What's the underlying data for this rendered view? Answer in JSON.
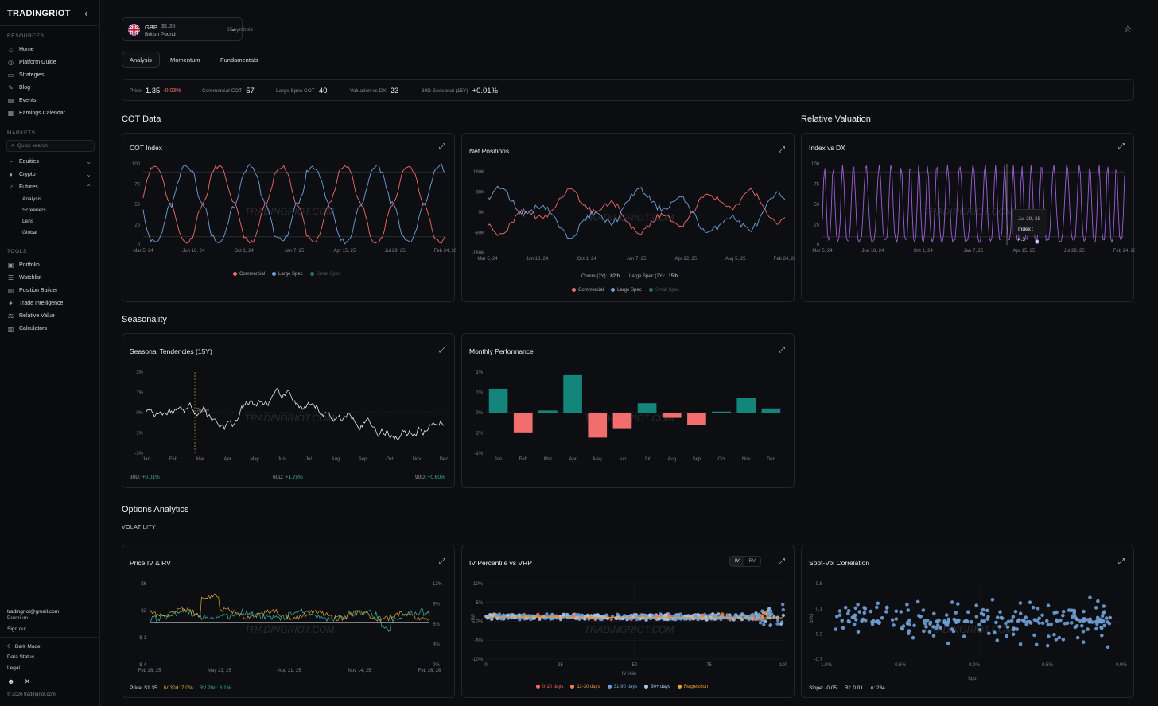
{
  "sidebar": {
    "brand": "TRADINGRIOT",
    "resources_label": "RESOURCES",
    "resources": [
      {
        "label": "Home",
        "icon": "home-icon"
      },
      {
        "label": "Platform Guide",
        "icon": "compass-icon"
      },
      {
        "label": "Strategies",
        "icon": "book-icon"
      },
      {
        "label": "Blog",
        "icon": "pen-icon"
      },
      {
        "label": "Events",
        "icon": "calendar-icon"
      },
      {
        "label": "Earnings Calendar",
        "icon": "calendar-grid-icon"
      }
    ],
    "markets_label": "MARKETS",
    "search_placeholder": "Quick search",
    "markets": [
      {
        "label": "Equities",
        "icon": "pie-icon"
      },
      {
        "label": "Crypto",
        "icon": "coin-icon"
      },
      {
        "label": "Futures",
        "icon": "rocket-icon"
      }
    ],
    "futures_sub": [
      "Analysis",
      "Screeners",
      "Lens",
      "Global"
    ],
    "tools_label": "TOOLS",
    "tools": [
      {
        "label": "Portfolio",
        "icon": "briefcase-icon"
      },
      {
        "label": "Watchlist",
        "icon": "list-icon"
      },
      {
        "label": "Position Builder",
        "icon": "calculator-icon"
      },
      {
        "label": "Trade Intelligence",
        "icon": "sparkle-icon"
      },
      {
        "label": "Relative Value",
        "icon": "scale-icon"
      },
      {
        "label": "Calculators",
        "icon": "calculator-icon"
      }
    ],
    "email": "tradingriot@gmail.com",
    "plan": "Premium",
    "sign_out": "Sign out",
    "dark_mode": "Dark Mode",
    "data_status": "Data Status",
    "legal": "Legal",
    "copyright": "© 2026 tradingriot.com"
  },
  "header": {
    "symbol": "GBP",
    "price": "$1.35",
    "name": "British Pound",
    "symbols_count": "35 symbols",
    "tabs": [
      "Analysis",
      "Momentum",
      "Fundamentals"
    ]
  },
  "stats": [
    {
      "label": "Price",
      "value": "1.35",
      "change": "-0.03%"
    },
    {
      "label": "Commercial COT",
      "value": "57"
    },
    {
      "label": "Large Spec COT",
      "value": "40"
    },
    {
      "label": "Valuation vs DX",
      "value": "23"
    },
    {
      "label": "30D Seasonal (15Y)",
      "value": "+0.01%"
    }
  ],
  "sections": {
    "cot": "COT Data",
    "relval": "Relative Valuation",
    "seasonality": "Seasonality",
    "options": "Options Analytics",
    "volatility": "VOLATILITY"
  },
  "watermark": "TRADINGRIOT.COM",
  "colors": {
    "commercial": "#ef6b6b",
    "large_spec": "#6fa0d8",
    "small_spec": "#2f6f5f",
    "purple": "#9d5fd6",
    "teal": "#13857a",
    "red_bar": "#f26d6d"
  },
  "cards": {
    "cot_index": {
      "title": "COT Index",
      "yticks": [
        "100",
        "75",
        "50",
        "25",
        "0"
      ],
      "xticks": [
        "Mar 5, 24",
        "Jun 18, 24",
        "Oct 1, 24",
        "Jan 7, 25",
        "Apr 15, 25",
        "Jul 29, 25",
        "Feb 24, 26"
      ],
      "legend": [
        "Commercial",
        "Large Spec",
        "Small Spec"
      ]
    },
    "net_positions": {
      "title": "Net Positions",
      "yticks": [
        "160K",
        "80K",
        "0K",
        "-80K",
        "-160K"
      ],
      "xticks": [
        "Mar 5, 24",
        "Jun 18, 24",
        "Oct 1, 24",
        "Jan 7, 25",
        "Apr 22, 25",
        "Aug 5, 25",
        "Feb 24, 26"
      ],
      "comm_label": "Comm (2Y):",
      "comm_value": "82th",
      "ls_label": "Large Spec (2Y):",
      "ls_value": "15th",
      "legend": [
        "Commercial",
        "Large Spec",
        "Small Spec"
      ]
    },
    "index_dx": {
      "title": "Index vs DX",
      "yticks": [
        "100",
        "75",
        "50",
        "25",
        "0"
      ],
      "xticks": [
        "Mar 5, 24",
        "Jun 18, 24",
        "Oct 1, 24",
        "Jan 7, 25",
        "Apr 15, 25",
        "Jul 29, 25",
        "Feb 24, 26"
      ],
      "tooltip_date": "Jul 29, 25",
      "tooltip_label": "Index :",
      "tooltip_value": "4.3"
    },
    "seasonal": {
      "title": "Seasonal Tendencies (15Y)",
      "yticks": [
        "3%",
        "1%",
        "0%",
        "-1%",
        "-3%"
      ],
      "xticks": [
        "Jan",
        "Feb",
        "Mar",
        "Apr",
        "May",
        "Jun",
        "Jul",
        "Aug",
        "Sep",
        "Oct",
        "Nov",
        "Dec"
      ],
      "today_label": "Today",
      "d30_label": "30D:",
      "d30": "+0.01%",
      "d60_label": "60D:",
      "d60": "+1.75%",
      "d90_label": "90D:",
      "d90": "+0.60%"
    },
    "monthly": {
      "title": "Monthly Performance",
      "yticks": [
        "1%",
        "1%",
        "0%",
        "-1%",
        "-1%"
      ]
    },
    "iv_rv": {
      "title": "Price IV & RV",
      "yticks_left": [
        "$6",
        "$2",
        "$-1",
        "$-4"
      ],
      "yticks_right": [
        "12%",
        "9%",
        "6%",
        "3%",
        "0%"
      ],
      "xticks": [
        "Feb 26, 25",
        "May 23, 25",
        "Aug 21, 25",
        "Nov 14, 25",
        "Feb 26, 26"
      ],
      "price_label": "Price: $1.35",
      "iv_label": "IV 30d: 7.0%",
      "rv_label": "RV 20d: 6.1%"
    },
    "iv_pct": {
      "title": "IV Percentile vs VRP",
      "toggle": [
        "IV",
        "RV"
      ],
      "yticks": [
        "10%",
        "5%",
        "0%",
        "-5%",
        "-10%"
      ],
      "xticks": [
        "0",
        "25",
        "50",
        "75",
        "100"
      ],
      "xlabel": "IV %ile",
      "ylabel": "VRP",
      "legend": [
        "0-10 days",
        "11-30 days",
        "31-90 days",
        "90+ days",
        "Regression"
      ]
    },
    "spot_vol": {
      "title": "Spot-Vol Correlation",
      "yticks": [
        "0.8",
        "0.1",
        "-0.3",
        "-0.7"
      ],
      "xticks": [
        "-1.0%",
        "-0.5%",
        "-0.0%",
        "0.5%",
        "0.9%"
      ],
      "xlabel": "Spot",
      "ylabel": "ΔVol",
      "slope": "Slope: -0.05",
      "r2": "R²: 0.01",
      "n": "n: 234"
    }
  },
  "chart_data": [
    {
      "type": "bar",
      "title": "Monthly Performance",
      "categories": [
        "Jan",
        "Feb",
        "Mar",
        "Apr",
        "May",
        "Jun",
        "Jul",
        "Aug",
        "Sep",
        "Oct",
        "Nov",
        "Dec"
      ],
      "values": [
        1.15,
        -0.95,
        0.1,
        1.8,
        -1.2,
        -0.75,
        0.45,
        -0.25,
        -0.6,
        0.05,
        0.7,
        0.2
      ],
      "ylim": [
        -1.95,
        1.95
      ]
    },
    {
      "type": "line",
      "title": "COT Index",
      "ylim": [
        0,
        100
      ],
      "series": [
        {
          "name": "Commercial"
        },
        {
          "name": "Large Spec"
        },
        {
          "name": "Small Spec"
        }
      ]
    },
    {
      "type": "line",
      "title": "Index vs DX",
      "ylim": [
        0,
        100
      ]
    },
    {
      "type": "scatter",
      "title": "Spot-Vol Correlation",
      "xlabel": "Spot",
      "ylabel": "ΔVol"
    }
  ]
}
